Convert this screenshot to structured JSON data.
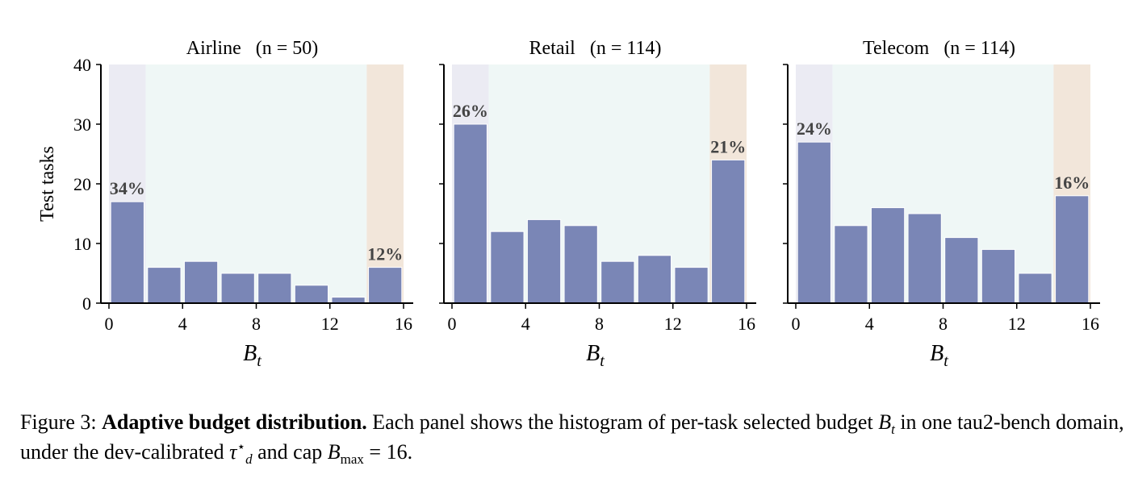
{
  "chart_data": [
    {
      "type": "bar",
      "title_name": "Airline",
      "title_n": "(n = 50)",
      "ylabel": "Test tasks",
      "xlabel_main": "B",
      "xlabel_sub": "t",
      "bin_edges": [
        0,
        2,
        4,
        6,
        8,
        10,
        12,
        14,
        16
      ],
      "values": [
        17,
        6,
        7,
        5,
        5,
        3,
        1,
        6
      ],
      "ylim": [
        0,
        40
      ],
      "xlim": [
        0,
        16
      ],
      "xticks": [
        "0",
        "4",
        "8",
        "12",
        "16"
      ],
      "yticks": [
        "0",
        "10",
        "20",
        "30",
        "40"
      ],
      "regions": [
        {
          "from": 0,
          "to": 2,
          "color": "#ebebf3"
        },
        {
          "from": 2,
          "to": 14,
          "color": "#eff7f6"
        },
        {
          "from": 14,
          "to": 16,
          "color": "#f2e6da"
        }
      ],
      "annotations": [
        {
          "bin": 0,
          "text": "34%"
        },
        {
          "bin": 7,
          "text": "12%"
        }
      ]
    },
    {
      "type": "bar",
      "title_name": "Retail",
      "title_n": "(n = 114)",
      "ylabel": "",
      "xlabel_main": "B",
      "xlabel_sub": "t",
      "bin_edges": [
        0,
        2,
        4,
        6,
        8,
        10,
        12,
        14,
        16
      ],
      "values": [
        30,
        12,
        14,
        13,
        7,
        8,
        6,
        24
      ],
      "ylim": [
        0,
        40
      ],
      "xlim": [
        0,
        16
      ],
      "xticks": [
        "0",
        "4",
        "8",
        "12",
        "16"
      ],
      "yticks": [],
      "regions": [
        {
          "from": 0,
          "to": 2,
          "color": "#ebebf3"
        },
        {
          "from": 2,
          "to": 14,
          "color": "#eff7f6"
        },
        {
          "from": 14,
          "to": 16,
          "color": "#f2e6da"
        }
      ],
      "annotations": [
        {
          "bin": 0,
          "text": "26%"
        },
        {
          "bin": 7,
          "text": "21%"
        }
      ]
    },
    {
      "type": "bar",
      "title_name": "Telecom",
      "title_n": "(n = 114)",
      "ylabel": "",
      "xlabel_main": "B",
      "xlabel_sub": "t",
      "bin_edges": [
        0,
        2,
        4,
        6,
        8,
        10,
        12,
        14,
        16
      ],
      "values": [
        27,
        13,
        16,
        15,
        11,
        9,
        5,
        18
      ],
      "ylim": [
        0,
        40
      ],
      "xlim": [
        0,
        16
      ],
      "xticks": [
        "0",
        "4",
        "8",
        "12",
        "16"
      ],
      "yticks": [],
      "regions": [
        {
          "from": 0,
          "to": 2,
          "color": "#ebebf3"
        },
        {
          "from": 2,
          "to": 14,
          "color": "#eff7f6"
        },
        {
          "from": 14,
          "to": 16,
          "color": "#f2e6da"
        }
      ],
      "annotations": [
        {
          "bin": 0,
          "text": "24%"
        },
        {
          "bin": 7,
          "text": "16%"
        }
      ]
    }
  ],
  "colors": {
    "bar": "#7a86b6",
    "annotation": "#444444"
  },
  "caption": {
    "prefix": "Figure 3: ",
    "bold": "Adaptive budget distribution.",
    "text1": " Each panel shows the histogram of per-task selected budget ",
    "var_b": "B",
    "var_b_sub": "t",
    "text2": " in one tau2-bench domain, under the dev-calibrated ",
    "var_tau": "τ",
    "var_tau_sub": "d",
    "var_tau_sup": "⋆",
    "text3": " and cap ",
    "var_bmax": "B",
    "var_bmax_sub": "max",
    "text4": " = 16."
  }
}
